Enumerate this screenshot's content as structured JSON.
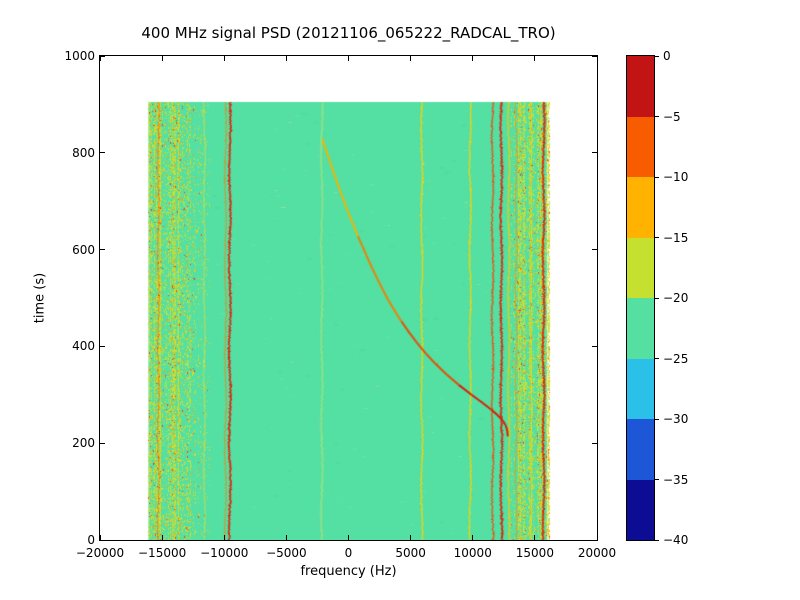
{
  "chart_data": {
    "type": "heatmap",
    "title": "400 MHz signal PSD (20121106_065222_RADCAL_TRO)",
    "xlabel": "frequency (Hz)",
    "ylabel": "time (s)",
    "xlim": [
      -20000,
      20000
    ],
    "ylim": [
      0,
      1000
    ],
    "xticks": [
      -20000,
      -15000,
      -10000,
      -5000,
      0,
      5000,
      10000,
      15000,
      20000
    ],
    "yticks": [
      0,
      200,
      400,
      600,
      800,
      1000
    ],
    "grid": false,
    "legend": "colorbar-right",
    "data_extent": {
      "f_min": -16100,
      "f_max": 16000,
      "t_min": 0,
      "t_max": 905
    },
    "background_color": "#54dfa3",
    "background_level_db": -22,
    "colorbar": {
      "ticks": [
        0,
        -5,
        -10,
        -15,
        -20,
        -25,
        -30,
        -35,
        -40
      ],
      "range": [
        0,
        -40
      ],
      "colors_top_to_bottom": [
        "#c21414",
        "#f85c00",
        "#ffb200",
        "#c6e030",
        "#55e0a2",
        "#2bc0e8",
        "#1e56d8",
        "#0c0c94"
      ]
    },
    "noise_bands": [
      {
        "f_start": -16100,
        "f_end": -12800,
        "density": 0.55
      },
      {
        "f_start": -12800,
        "f_end": -11300,
        "density": 0.12
      },
      {
        "f_start": 13000,
        "f_end": 13700,
        "density": 0.15
      },
      {
        "f_start": 13700,
        "f_end": 16100,
        "density": 0.5
      }
    ],
    "carriers": [
      {
        "f": -15300,
        "color": "#ff5a00",
        "width": 1,
        "alpha": 0.7
      },
      {
        "f": -11600,
        "color": "#e0e040",
        "width": 1.5,
        "alpha": 0.55
      },
      {
        "f": -9900,
        "color": "#ff7a00",
        "width": 1,
        "alpha": 0.85
      },
      {
        "f": -9550,
        "color": "#e81600",
        "width": 2,
        "alpha": 0.95
      },
      {
        "f": -2150,
        "color": "#c6e96a",
        "width": 2,
        "alpha": 0.5
      },
      {
        "f": 5900,
        "color": "#ffd400",
        "width": 1.5,
        "alpha": 0.9
      },
      {
        "f": 9800,
        "color": "#ffd400",
        "width": 1.5,
        "alpha": 0.9
      },
      {
        "f": 11600,
        "color": "#ff3c00",
        "width": 1.5,
        "alpha": 0.9
      },
      {
        "f": 12300,
        "color": "#e81600",
        "width": 2,
        "alpha": 0.95
      },
      {
        "f": 12900,
        "color": "#ffc800",
        "width": 1.5,
        "alpha": 0.9
      },
      {
        "f": 13500,
        "color": "#ff8c00",
        "width": 1,
        "alpha": 0.8
      },
      {
        "f": 14700,
        "color": "#ffd400",
        "width": 1,
        "alpha": 0.8
      },
      {
        "f": 15700,
        "color": "#e81600",
        "width": 2,
        "alpha": 0.95
      }
    ],
    "chirp": {
      "description": "Doppler-shifted tone sweeping from about -2100 Hz at t=830 s down-right to about 12800 Hz at t=210 s",
      "points": [
        [
          828,
          -2100
        ],
        [
          805,
          -1800
        ],
        [
          782,
          -1500
        ],
        [
          760,
          -1200
        ],
        [
          738,
          -900
        ],
        [
          716,
          -600
        ],
        [
          694,
          -280
        ],
        [
          672,
          50
        ],
        [
          650,
          400
        ],
        [
          628,
          760
        ],
        [
          606,
          1130
        ],
        [
          584,
          1510
        ],
        [
          562,
          1900
        ],
        [
          540,
          2310
        ],
        [
          518,
          2740
        ],
        [
          496,
          3200
        ],
        [
          474,
          3700
        ],
        [
          452,
          4250
        ],
        [
          430,
          4850
        ],
        [
          408,
          5500
        ],
        [
          386,
          6200
        ],
        [
          364,
          7000
        ],
        [
          342,
          7900
        ],
        [
          320,
          8900
        ],
        [
          300,
          9900
        ],
        [
          284,
          10750
        ],
        [
          270,
          11450
        ],
        [
          258,
          12000
        ],
        [
          247,
          12400
        ],
        [
          237,
          12650
        ],
        [
          226,
          12780
        ],
        [
          214,
          12820
        ]
      ]
    }
  }
}
